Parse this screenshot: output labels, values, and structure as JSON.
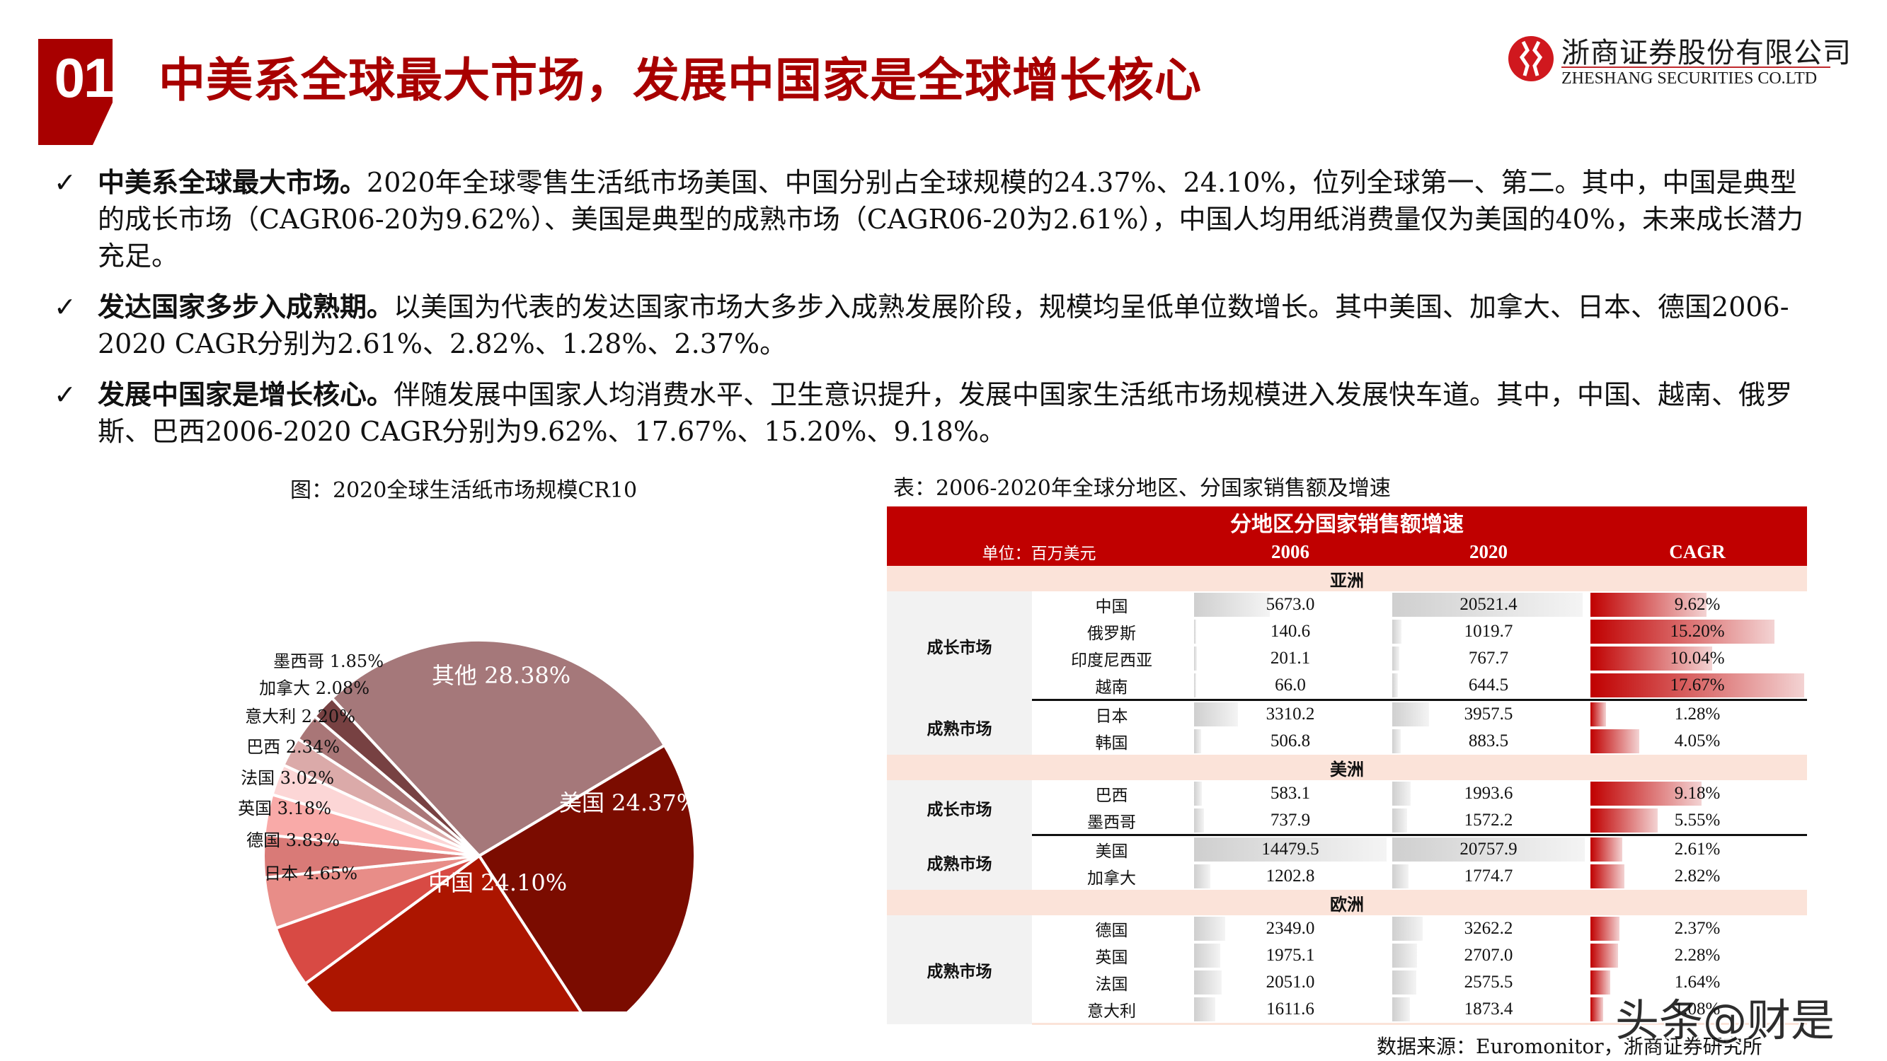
{
  "header": {
    "section_number": "01",
    "title": "中美系全球最大市场，发展中国家是全球增长核心",
    "accent_color": "#a80000"
  },
  "logo": {
    "name_cn": "浙商证券股份有限公司",
    "name_en": "ZHESHANG SECURITIES CO.LTD",
    "brand_color": "#c0282d"
  },
  "bullets": [
    {
      "lead": "中美系全球最大市场。",
      "text": "2020年全球零售生活纸市场美国、中国分别占全球规模的24.37%、24.10%，位列全球第一、第二。其中，中国是典型的成长市场（CAGR06-20为9.62%）、美国是典型的成熟市场（CAGR06-20为2.61%），中国人均用纸消费量仅为美国的40%，未来成长潜力充足。"
    },
    {
      "lead": "发达国家多步入成熟期。",
      "text": "以美国为代表的发达国家市场大多步入成熟发展阶段，规模均呈低单位数增长。其中美国、加拿大、日本、德国2006-2020 CAGR分别为2.61%、2.82%、1.28%、2.37%。"
    },
    {
      "lead": "发展中国家是增长核心。",
      "text": "伴随发展中国家人均消费水平、卫生意识提升，发展中国家生活纸市场规模进入发展快车道。其中，中国、越南、俄罗斯、巴西2006-2020 CAGR分别为9.62%、17.67%、15.20%、9.18%。"
    }
  ],
  "chart_caption": "图：2020全球生活纸市场规模CR10",
  "table_caption": "表：2006-2020年全球分地区、分国家销售额及增速",
  "chart_data": {
    "type": "pie",
    "title": "2020全球生活纸市场规模CR10",
    "categories": [
      "其他",
      "美国",
      "中国",
      "日本",
      "德国",
      "英国",
      "法国",
      "巴西",
      "意大利",
      "加拿大",
      "墨西哥"
    ],
    "values": [
      28.38,
      24.37,
      24.1,
      4.65,
      3.83,
      3.18,
      3.02,
      2.34,
      2.2,
      2.08,
      1.85
    ],
    "labels": [
      "其他 28.38%",
      "美国 24.37%",
      "中国 24.10%",
      "日本 4.65%",
      "德国 3.83%",
      "英国 3.18%",
      "法国 3.02%",
      "巴西 2.34%",
      "意大利 2.20%",
      "加拿大 2.08%",
      "墨西哥 1.85%"
    ],
    "colors": [
      "#a5787a",
      "#7b0c00",
      "#ac1500",
      "#d84a44",
      "#e88d88",
      "#d97a77",
      "#f9aaa8",
      "#fcd6d6",
      "#dbaaa9",
      "#a97677",
      "#774142"
    ],
    "unit": "%",
    "legend": "none (labels on slices)"
  },
  "table": {
    "title": "分地区分国家销售额增速",
    "unit_label": "单位：百万美元",
    "columns": [
      "2006",
      "2020",
      "CAGR"
    ],
    "header_color": "#c00000",
    "region_color": "#fbe3d9",
    "regions": [
      {
        "name": "亚洲",
        "groups": [
          {
            "name": "成长市场",
            "rows": [
              {
                "country": "中国",
                "v2006": "5673.0",
                "v2020": "20521.4",
                "cagr": "9.62%"
              },
              {
                "country": "俄罗斯",
                "v2006": "140.6",
                "v2020": "1019.7",
                "cagr": "15.20%"
              },
              {
                "country": "印度尼西亚",
                "v2006": "201.1",
                "v2020": "767.7",
                "cagr": "10.04%"
              },
              {
                "country": "越南",
                "v2006": "66.0",
                "v2020": "644.5",
                "cagr": "17.67%"
              }
            ]
          },
          {
            "name": "成熟市场",
            "rows": [
              {
                "country": "日本",
                "v2006": "3310.2",
                "v2020": "3957.5",
                "cagr": "1.28%"
              },
              {
                "country": "韩国",
                "v2006": "506.8",
                "v2020": "883.5",
                "cagr": "4.05%"
              }
            ]
          }
        ]
      },
      {
        "name": "美洲",
        "groups": [
          {
            "name": "成长市场",
            "rows": [
              {
                "country": "巴西",
                "v2006": "583.1",
                "v2020": "1993.6",
                "cagr": "9.18%"
              },
              {
                "country": "墨西哥",
                "v2006": "737.9",
                "v2020": "1572.2",
                "cagr": "5.55%"
              }
            ]
          },
          {
            "name": "成熟市场",
            "rows": [
              {
                "country": "美国",
                "v2006": "14479.5",
                "v2020": "20757.9",
                "cagr": "2.61%"
              },
              {
                "country": "加拿大",
                "v2006": "1202.8",
                "v2020": "1774.7",
                "cagr": "2.82%"
              }
            ]
          }
        ]
      },
      {
        "name": "欧洲",
        "groups": [
          {
            "name": "成熟市场",
            "rows": [
              {
                "country": "德国",
                "v2006": "2349.0",
                "v2020": "3262.2",
                "cagr": "2.37%"
              },
              {
                "country": "英国",
                "v2006": "1975.1",
                "v2020": "2707.0",
                "cagr": "2.28%"
              },
              {
                "country": "法国",
                "v2006": "2051.0",
                "v2020": "2575.5",
                "cagr": "1.64%"
              },
              {
                "country": "意大利",
                "v2006": "1611.6",
                "v2020": "1873.4",
                "cagr": "1.08%"
              }
            ]
          }
        ]
      }
    ]
  },
  "source": "数据来源：Euromonitor，浙商证券研究所",
  "watermark": "头条@财是"
}
